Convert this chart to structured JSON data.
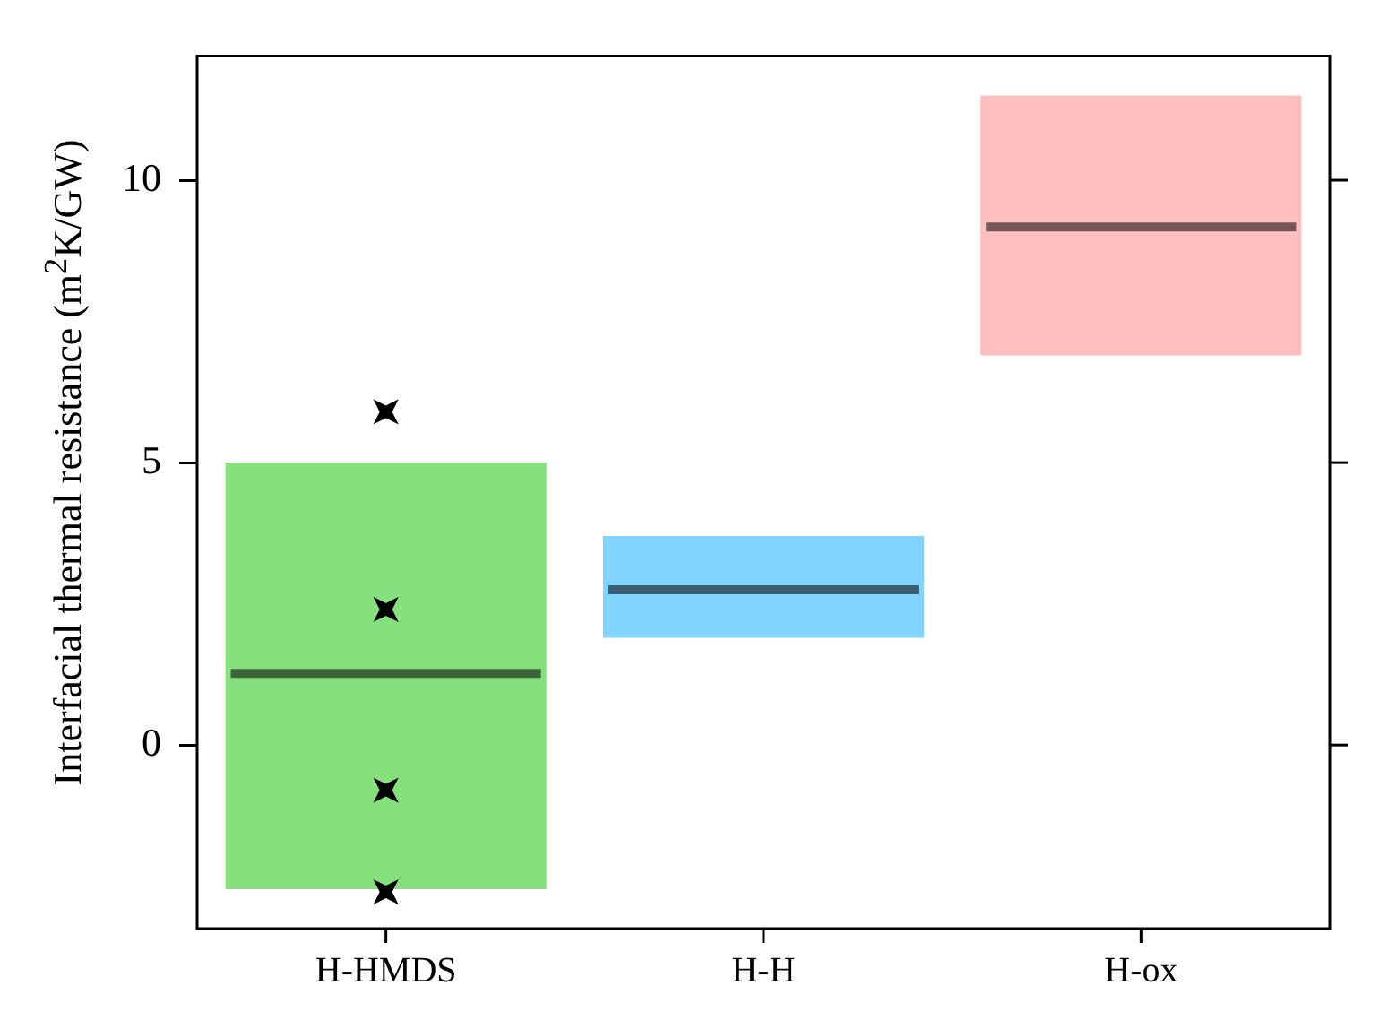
{
  "chart_data": {
    "type": "box",
    "ylabel": "Interfacial thermal resistance (m$^{2}$K/GW)",
    "categories": [
      "H-HMDS",
      "H-H",
      "H-ox"
    ],
    "series": [
      {
        "colors": [
          "#86e07e",
          "#80d4ff",
          "#ffbfbf"
        ],
        "boxes": [
          {
            "low": -2.55,
            "q1": -2.55,
            "median": 1.27,
            "q3": 5.0,
            "high": 5.0
          },
          {
            "low": 1.9,
            "q1": 1.9,
            "median": 2.75,
            "q3": 3.7,
            "high": 3.7
          },
          {
            "low": 6.9,
            "q1": 6.9,
            "median": 9.17,
            "q3": 11.5,
            "high": 11.5
          }
        ]
      },
      {
        "type": "scatter",
        "x": [
          "H-HMDS",
          "H-HMDS",
          "H-HMDS",
          "H-HMDS"
        ],
        "values": [
          5.9,
          2.4,
          -0.8,
          -2.6
        ],
        "color": "#000000",
        "marker": "star"
      }
    ],
    "ylim": [
      -3.25,
      12.2
    ],
    "yticks": [
      0,
      5,
      10
    ],
    "grid": false,
    "legend": false
  }
}
